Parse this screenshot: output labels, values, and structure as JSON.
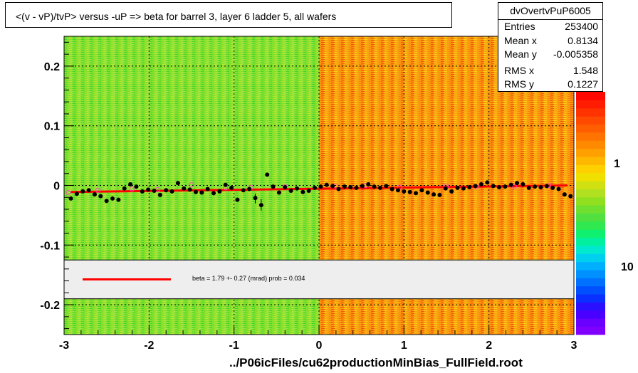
{
  "title": "<(v - vP)/tvP> versus  -uP => beta for barrel 3, layer 6 ladder 5, all wafers",
  "footer": "../P06icFiles/cu62productionMinBias_FullField.root",
  "stats": {
    "name": "dvOvertvPuP6005",
    "rows": [
      {
        "label": "Entries",
        "value": "253400"
      },
      {
        "label": "Mean x",
        "value": "0.8134"
      },
      {
        "label": "Mean y",
        "value": "-0.005358"
      },
      {
        "label": "RMS x",
        "value": "1.548"
      },
      {
        "label": "RMS y",
        "value": "0.1227"
      }
    ]
  },
  "fit_legend": "beta =    1.79 +-  0.27 (mrad) prob = 0.034",
  "colors": {
    "fit_line": "#ff0000",
    "points": "#000000",
    "open_markers": "#ff44cc"
  },
  "chart_data": {
    "type": "scatter",
    "xlim": [
      -3,
      3
    ],
    "ylim": [
      -0.25,
      0.25
    ],
    "xticks": [
      -3,
      -2,
      -1,
      0,
      1,
      2,
      3
    ],
    "xtick_labels": [
      "-3",
      "-2",
      "-1",
      "0",
      "1",
      "2",
      "3"
    ],
    "yticks": [
      -0.2,
      -0.1,
      0,
      0.1,
      0.2
    ],
    "ytick_labels": [
      "-0.2",
      "-0.1",
      "0",
      "0.1",
      "0.2"
    ],
    "grid": true,
    "colorbar_labels": [
      "1",
      "10"
    ],
    "fit_line": {
      "x": [
        -2.92,
        2.92
      ],
      "y": [
        -0.011,
        0.0
      ]
    },
    "profile_points": [
      {
        "x": -2.92,
        "y": -0.022
      },
      {
        "x": -2.85,
        "y": -0.014
      },
      {
        "x": -2.78,
        "y": -0.01
      },
      {
        "x": -2.71,
        "y": -0.008
      },
      {
        "x": -2.64,
        "y": -0.015
      },
      {
        "x": -2.57,
        "y": -0.018
      },
      {
        "x": -2.5,
        "y": -0.026
      },
      {
        "x": -2.43,
        "y": -0.022
      },
      {
        "x": -2.36,
        "y": -0.024
      },
      {
        "x": -2.29,
        "y": -0.005
      },
      {
        "x": -2.22,
        "y": 0.002
      },
      {
        "x": -2.15,
        "y": -0.002
      },
      {
        "x": -2.08,
        "y": -0.01
      },
      {
        "x": -2.01,
        "y": -0.007
      },
      {
        "x": -1.94,
        "y": -0.009
      },
      {
        "x": -1.87,
        "y": -0.016
      },
      {
        "x": -1.8,
        "y": -0.008
      },
      {
        "x": -1.73,
        "y": -0.01
      },
      {
        "x": -1.66,
        "y": 0.004
      },
      {
        "x": -1.59,
        "y": -0.005
      },
      {
        "x": -1.52,
        "y": -0.007
      },
      {
        "x": -1.45,
        "y": -0.011
      },
      {
        "x": -1.38,
        "y": -0.012
      },
      {
        "x": -1.31,
        "y": -0.006
      },
      {
        "x": -1.24,
        "y": -0.013
      },
      {
        "x": -1.17,
        "y": -0.01
      },
      {
        "x": -1.1,
        "y": 0.001
      },
      {
        "x": -1.03,
        "y": -0.004
      },
      {
        "x": -0.96,
        "y": -0.024
      },
      {
        "x": -0.89,
        "y": -0.008
      },
      {
        "x": -0.82,
        "y": -0.006
      },
      {
        "x": -0.75,
        "y": -0.021
      },
      {
        "x": -0.68,
        "y": -0.033
      },
      {
        "x": -0.61,
        "y": 0.018
      },
      {
        "x": -0.54,
        "y": -0.002
      },
      {
        "x": -0.47,
        "y": -0.012
      },
      {
        "x": -0.4,
        "y": -0.003
      },
      {
        "x": -0.33,
        "y": -0.009
      },
      {
        "x": -0.26,
        "y": -0.005
      },
      {
        "x": -0.19,
        "y": -0.011
      },
      {
        "x": -0.12,
        "y": -0.009
      },
      {
        "x": -0.05,
        "y": -0.004
      },
      {
        "x": 0.02,
        "y": -0.002
      },
      {
        "x": 0.09,
        "y": 0.001
      },
      {
        "x": 0.16,
        "y": -0.001
      },
      {
        "x": 0.23,
        "y": -0.006
      },
      {
        "x": 0.3,
        "y": -0.002
      },
      {
        "x": 0.37,
        "y": -0.003
      },
      {
        "x": 0.44,
        "y": -0.004
      },
      {
        "x": 0.51,
        "y": -0.001
      },
      {
        "x": 0.58,
        "y": 0.002
      },
      {
        "x": 0.65,
        "y": -0.002
      },
      {
        "x": 0.72,
        "y": -0.004
      },
      {
        "x": 0.79,
        "y": -0.001
      },
      {
        "x": 0.86,
        "y": -0.006
      },
      {
        "x": 0.93,
        "y": -0.008
      },
      {
        "x": 1.0,
        "y": -0.01
      },
      {
        "x": 1.07,
        "y": -0.011
      },
      {
        "x": 1.14,
        "y": -0.013
      },
      {
        "x": 1.21,
        "y": -0.008
      },
      {
        "x": 1.28,
        "y": -0.012
      },
      {
        "x": 1.35,
        "y": -0.015
      },
      {
        "x": 1.42,
        "y": -0.016
      },
      {
        "x": 1.49,
        "y": -0.005
      },
      {
        "x": 1.56,
        "y": -0.01
      },
      {
        "x": 1.63,
        "y": -0.004
      },
      {
        "x": 1.7,
        "y": -0.005
      },
      {
        "x": 1.77,
        "y": -0.003
      },
      {
        "x": 1.84,
        "y": -0.001
      },
      {
        "x": 1.91,
        "y": 0.002
      },
      {
        "x": 1.98,
        "y": 0.005
      },
      {
        "x": 2.05,
        "y": -0.001
      },
      {
        "x": 2.12,
        "y": -0.003
      },
      {
        "x": 2.19,
        "y": -0.002
      },
      {
        "x": 2.26,
        "y": 0.001
      },
      {
        "x": 2.33,
        "y": 0.004
      },
      {
        "x": 2.4,
        "y": 0.002
      },
      {
        "x": 2.47,
        "y": -0.004
      },
      {
        "x": 2.54,
        "y": -0.002
      },
      {
        "x": 2.61,
        "y": -0.003
      },
      {
        "x": 2.68,
        "y": -0.001
      },
      {
        "x": 2.75,
        "y": -0.004
      },
      {
        "x": 2.82,
        "y": -0.006
      },
      {
        "x": 2.89,
        "y": -0.015
      },
      {
        "x": 2.96,
        "y": -0.018
      }
    ],
    "error_bars": [
      {
        "x": -0.75,
        "y_low": -0.03,
        "y_high": -0.014
      },
      {
        "x": -0.68,
        "y_low": -0.042,
        "y_high": -0.023
      }
    ],
    "open_markers": [
      {
        "x": -2.95,
        "y": -0.012
      },
      {
        "x": -2.6,
        "y": -0.008
      },
      {
        "x": -2.2,
        "y": -0.006
      },
      {
        "x": -1.9,
        "y": -0.007
      },
      {
        "x": -1.5,
        "y": 0.001
      },
      {
        "x": -1.1,
        "y": -0.004
      },
      {
        "x": -0.8,
        "y": -0.003
      },
      {
        "x": -0.4,
        "y": -0.002
      },
      {
        "x": 0.2,
        "y": -0.001
      },
      {
        "x": 0.55,
        "y": 0.0
      },
      {
        "x": 0.95,
        "y": -0.003
      },
      {
        "x": 1.5,
        "y": -0.001
      },
      {
        "x": 1.85,
        "y": -0.002
      },
      {
        "x": 2.3,
        "y": -0.002
      },
      {
        "x": 2.7,
        "y": 0.0
      }
    ]
  }
}
